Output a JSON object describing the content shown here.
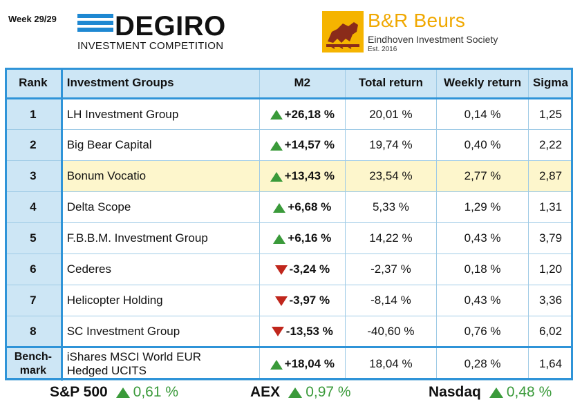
{
  "header": {
    "week": "Week 29/29",
    "degiro_name": "DEGIRO",
    "degiro_sub": "INVESTMENT COMPETITION",
    "society_name": "B&R Beurs",
    "society_sub": "Eindhoven Investment Society",
    "society_est": "Est. 2016"
  },
  "colors": {
    "accent": "#2f94d8",
    "header_bg": "#cde6f5",
    "highlight_bg": "#fdf6cc",
    "up": "#3a9a3a",
    "down": "#c0261c",
    "brand_gold": "#f0a800"
  },
  "table": {
    "columns": [
      "Rank",
      "Investment Groups",
      "M2",
      "Total return",
      "Weekly return",
      "Sigma"
    ],
    "rows": [
      {
        "rank": "1",
        "group": "LH Investment Group",
        "direction": "up",
        "m2": "+26,18 %",
        "total": "20,01 %",
        "weekly": "0,14 %",
        "sigma": "1,25"
      },
      {
        "rank": "2",
        "group": "Big Bear Capital",
        "direction": "up",
        "m2": "+14,57 %",
        "total": "19,74 %",
        "weekly": "0,40 %",
        "sigma": "2,22"
      },
      {
        "rank": "3",
        "group": "Bonum Vocatio",
        "direction": "up",
        "m2": "+13,43 %",
        "total": "23,54 %",
        "weekly": "2,77 %",
        "sigma": "2,87"
      },
      {
        "rank": "4",
        "group": "Delta Scope",
        "direction": "up",
        "m2": "+6,68 %",
        "total": "5,33 %",
        "weekly": "1,29 %",
        "sigma": "1,31"
      },
      {
        "rank": "5",
        "group": "F.B.B.M. Investment Group",
        "direction": "up",
        "m2": "+6,16 %",
        "total": "14,22 %",
        "weekly": "0,43 %",
        "sigma": "3,79"
      },
      {
        "rank": "6",
        "group": "Cederes",
        "direction": "down",
        "m2": "-3,24 %",
        "total": "-2,37 %",
        "weekly": "0,18 %",
        "sigma": "1,20"
      },
      {
        "rank": "7",
        "group": "Helicopter Holding",
        "direction": "down",
        "m2": "-3,97 %",
        "total": "-8,14 %",
        "weekly": "0,43 %",
        "sigma": "3,36"
      },
      {
        "rank": "8",
        "group": "SC Investment Group",
        "direction": "down",
        "m2": "-13,53 %",
        "total": "-40,60 %",
        "weekly": "0,76 %",
        "sigma": "6,02"
      }
    ],
    "benchmark": {
      "label_line1": "Bench-",
      "label_line2": "mark",
      "group_line1": "iShares MSCI World EUR",
      "group_line2": "Hedged UCITS",
      "direction": "up",
      "m2": "+18,04 %",
      "total": "18,04 %",
      "weekly": "0,28 %",
      "sigma": "1,64"
    }
  },
  "indices": [
    {
      "name": "S&P 500",
      "direction": "up",
      "value": "0,61 %"
    },
    {
      "name": "AEX",
      "direction": "up",
      "value": "0,97 %"
    },
    {
      "name": "Nasdaq",
      "direction": "up",
      "value": "0,48 %"
    }
  ]
}
